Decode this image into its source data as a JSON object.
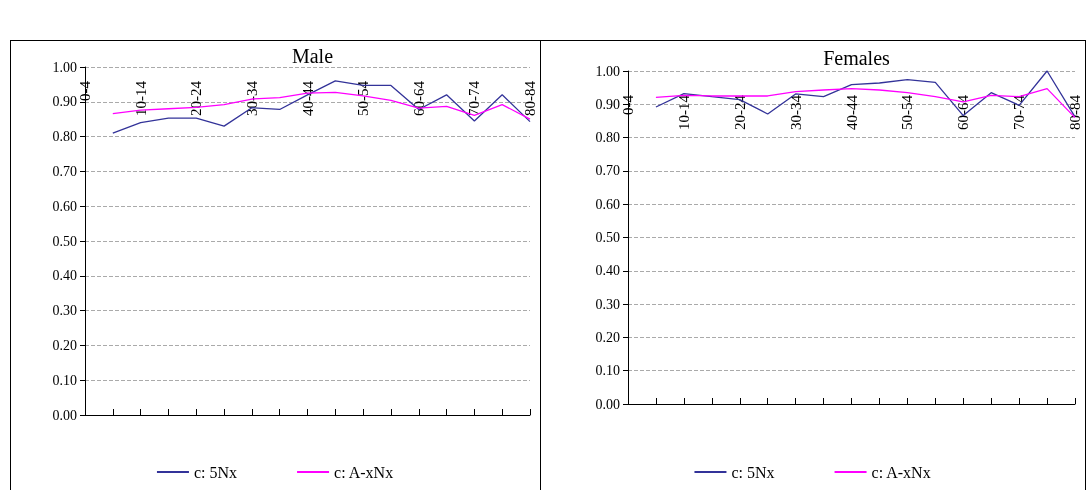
{
  "chart_data": [
    {
      "type": "line",
      "title": "Male",
      "categories": [
        "0-4",
        null,
        "10-14",
        null,
        "20-24",
        null,
        "30-34",
        null,
        "40-44",
        null,
        "50-54",
        null,
        "60-64",
        null,
        "70-74",
        null,
        "80-84"
      ],
      "series": [
        {
          "name": "c: 5Nx",
          "color": "#333399",
          "values": [
            null,
            0.81,
            0.84,
            0.853,
            0.853,
            0.83,
            0.883,
            0.878,
            0.92,
            0.96,
            0.947,
            0.947,
            0.878,
            0.92,
            0.845,
            0.92,
            0.843
          ]
        },
        {
          "name": "c: A-xNx",
          "color": "#ff00ff",
          "values": [
            null,
            0.866,
            0.876,
            0.88,
            0.884,
            0.892,
            0.908,
            0.912,
            0.925,
            0.927,
            0.917,
            0.904,
            0.882,
            0.887,
            0.861,
            0.892,
            0.85
          ]
        }
      ],
      "ylim": [
        0,
        1
      ],
      "yticks": [
        {
          "value": 0,
          "label": "0.00"
        },
        {
          "value": 0.1,
          "label": "0.10"
        },
        {
          "value": 0.2,
          "label": "0.20"
        },
        {
          "value": 0.3,
          "label": "0.30"
        },
        {
          "value": 0.4,
          "label": "0.40"
        },
        {
          "value": 0.5,
          "label": "0.50"
        },
        {
          "value": 0.6,
          "label": "0.60"
        },
        {
          "value": 0.7,
          "label": "0.70"
        },
        {
          "value": 0.8,
          "label": "0.80"
        },
        {
          "value": 0.9,
          "label": "0.90"
        },
        {
          "value": 1,
          "label": "1.00"
        }
      ],
      "grid": "y",
      "legend": "bottom",
      "marker": "none",
      "line_style": "solid"
    },
    {
      "type": "line",
      "title": "Females",
      "categories": [
        "0-4",
        null,
        "10-14",
        null,
        "20-24",
        null,
        "30-34",
        null,
        "40-44",
        null,
        "50-54",
        null,
        "60-64",
        null,
        "70-74",
        null,
        "80-84"
      ],
      "series": [
        {
          "name": "c: 5Nx",
          "color": "#333399",
          "values": [
            null,
            0.892,
            0.932,
            0.923,
            0.914,
            0.871,
            0.931,
            0.923,
            0.959,
            0.964,
            0.974,
            0.966,
            0.866,
            0.935,
            0.897,
            1.0,
            0.862
          ]
        },
        {
          "name": "c: A-xNx",
          "color": "#ff00ff",
          "values": [
            null,
            0.921,
            0.927,
            0.925,
            0.925,
            0.925,
            0.938,
            0.943,
            0.947,
            0.943,
            0.935,
            0.923,
            0.907,
            0.927,
            0.923,
            0.947,
            0.86
          ]
        }
      ],
      "ylim": [
        0,
        1
      ],
      "yticks": [
        {
          "value": 0,
          "label": "0.00"
        },
        {
          "value": 0.1,
          "label": "0.10"
        },
        {
          "value": 0.2,
          "label": "0.20"
        },
        {
          "value": 0.3,
          "label": "0.30"
        },
        {
          "value": 0.4,
          "label": "0.40"
        },
        {
          "value": 0.5,
          "label": "0.50"
        },
        {
          "value": 0.6,
          "label": "0.60"
        },
        {
          "value": 0.7,
          "label": "0.70"
        },
        {
          "value": 0.8,
          "label": "0.80"
        },
        {
          "value": 0.9,
          "label": "0.90"
        },
        {
          "value": 1,
          "label": "1.00"
        }
      ],
      "grid": "y",
      "legend": "bottom",
      "marker": "none",
      "line_style": "solid"
    }
  ]
}
